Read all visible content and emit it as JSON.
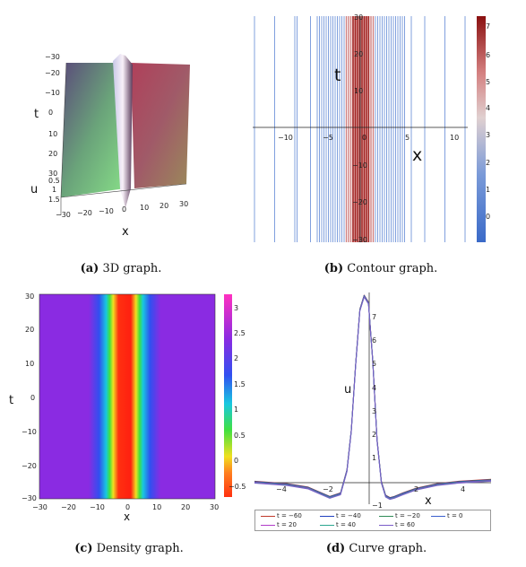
{
  "panels": {
    "a": {
      "caption_tag": "(a)",
      "caption_text": "3D graph.",
      "x_label": "x",
      "t_label": "t",
      "u_label": "u",
      "x_ticks": [
        "−30",
        "−20",
        "−10",
        "0",
        "10",
        "20",
        "30"
      ],
      "t_ticks": [
        "−30",
        "−20",
        "−10",
        "0",
        "10",
        "20",
        "30"
      ],
      "u_ticks": [
        "1.5",
        "1",
        "0.5"
      ]
    },
    "b": {
      "caption_tag": "(b)",
      "caption_text": "Contour graph.",
      "x_label": "x",
      "t_label": "t",
      "x_ticks": [
        "−10",
        "−5",
        "0",
        "5",
        "10"
      ],
      "t_ticks": [
        "30",
        "20",
        "10",
        "−10",
        "−20",
        "−30"
      ],
      "colorbar_ticks": [
        "7",
        "6",
        "5",
        "4",
        "3",
        "2",
        "1",
        "0"
      ]
    },
    "c": {
      "caption_tag": "(c)",
      "caption_text": "Density graph.",
      "x_label": "x",
      "t_label": "t",
      "x_ticks": [
        "−30",
        "−20",
        "−10",
        "0",
        "10",
        "20",
        "30"
      ],
      "t_ticks": [
        "30",
        "20",
        "10",
        "0",
        "−10",
        "−20",
        "−30"
      ],
      "colorbar_ticks": [
        "3",
        "2.5",
        "2",
        "1.5",
        "1",
        "0.5",
        "0",
        "−0.5"
      ]
    },
    "d": {
      "caption_tag": "(d)",
      "caption_text": "Curve graph.",
      "x_label": "x",
      "u_label": "u",
      "x_ticks": [
        "−4",
        "−2",
        "2",
        "4"
      ],
      "y_ticks": [
        "7",
        "6",
        "5",
        "4",
        "3",
        "2",
        "1",
        "−1"
      ],
      "legend": [
        "t = −60",
        "t = −40",
        "t = −20",
        "t = 0",
        "t = 20",
        "t = 40",
        "t = 60"
      ]
    }
  },
  "chart_data": [
    {
      "type": "surface",
      "panel": "a",
      "xlim": [
        -30,
        30
      ],
      "ylim": [
        -30,
        30
      ],
      "zlim": [
        0,
        1.5
      ],
      "xlabel": "x",
      "ylabel": "t",
      "zlabel": "u"
    },
    {
      "type": "contour",
      "panel": "b",
      "xlim": [
        -12,
        12
      ],
      "ylim": [
        -30,
        30
      ],
      "xlabel": "x",
      "ylabel": "t"
    },
    {
      "type": "heatmap",
      "panel": "c",
      "xlim": [
        -30,
        30
      ],
      "ylim": [
        -30,
        30
      ],
      "xlabel": "x",
      "ylabel": "t",
      "colorbar_range": [
        -0.7,
        3.2
      ]
    },
    {
      "type": "line",
      "panel": "d",
      "xlabel": "x",
      "ylabel": "u",
      "xlim": [
        -5.5,
        5.5
      ],
      "ylim": [
        -1.3,
        7.8
      ],
      "series": [
        {
          "name": "t = −60",
          "color": "#c0392b"
        },
        {
          "name": "t = −40",
          "color": "#1f3fbf"
        },
        {
          "name": "t = −20",
          "color": "#2e8b57"
        },
        {
          "name": "t = 0",
          "color": "#3a5fcd"
        },
        {
          "name": "t = 20",
          "color": "#b03cc8"
        },
        {
          "name": "t = 40",
          "color": "#2aa58f"
        },
        {
          "name": "t = 60",
          "color": "#7a5cc8"
        }
      ],
      "x": [
        -5.5,
        -4,
        -3,
        -2,
        -1.5,
        -1.2,
        -1,
        -0.8,
        -0.6,
        -0.4,
        -0.2,
        0,
        0.2,
        0.4,
        0.6,
        0.8,
        1,
        1.4,
        2,
        3,
        4,
        5.5
      ],
      "values": [
        -0.2,
        -0.3,
        -0.45,
        -0.85,
        -0.7,
        0.3,
        2.0,
        4.8,
        7.2,
        7.8,
        7.5,
        5.0,
        1.6,
        -0.2,
        -0.8,
        -0.9,
        -0.85,
        -0.7,
        -0.5,
        -0.3,
        -0.2,
        -0.12
      ]
    }
  ]
}
